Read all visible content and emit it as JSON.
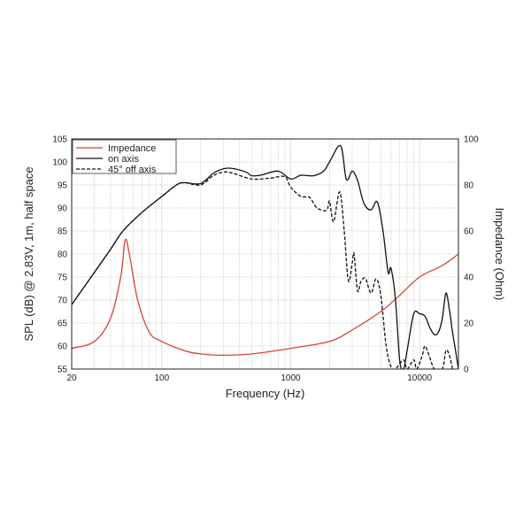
{
  "chart_data": {
    "type": "line",
    "xlabel": "Frequency (Hz)",
    "ylabel": "SPL (dB) @ 2.83V, 1m, half space",
    "y2label": "Impedance (Ohm)",
    "xscale": "log",
    "xlim": [
      20,
      20000
    ],
    "ylim": [
      55,
      105
    ],
    "y2lim": [
      0,
      100
    ],
    "x_ticks": [
      "20",
      "100",
      "1000",
      "10000"
    ],
    "x_tick_values": [
      20,
      100,
      1000,
      10000
    ],
    "y_ticks": [
      "55",
      "60",
      "65",
      "70",
      "75",
      "80",
      "85",
      "90",
      "95",
      "100",
      "105"
    ],
    "y2_ticks": [
      "0",
      "20",
      "40",
      "60",
      "80",
      "100"
    ],
    "grid": true,
    "legend_position": "top-left",
    "series": [
      {
        "name": "Impedance",
        "axis": "right",
        "color": "#d9403a",
        "style": "solid",
        "x": [
          20,
          30,
          40,
          48,
          52,
          56,
          65,
          80,
          100,
          150,
          200,
          300,
          500,
          1000,
          2000,
          3000,
          5000,
          7000,
          10000,
          15000,
          20000
        ],
        "y": [
          9,
          12,
          22,
          40,
          56,
          50,
          30,
          16,
          12,
          8,
          6.6,
          6,
          6.6,
          9,
          12,
          17,
          25,
          32,
          40,
          45,
          50
        ]
      },
      {
        "name": "on axis",
        "axis": "left",
        "color": "#111111",
        "style": "solid",
        "x": [
          20,
          30,
          40,
          50,
          70,
          100,
          130,
          150,
          200,
          250,
          300,
          350,
          450,
          500,
          600,
          800,
          1000,
          1200,
          1500,
          1800,
          2000,
          2440,
          2700,
          3000,
          3300,
          3700,
          4200,
          4700,
          5200,
          5700,
          6000,
          6500,
          7000,
          7500,
          8000,
          9000,
          10000,
          11000,
          12000,
          13000,
          14000,
          15000,
          16000,
          17000,
          18000,
          19000,
          20000
        ],
        "y": [
          69,
          76,
          81,
          85,
          89,
          92.5,
          95,
          95.5,
          95.3,
          97.5,
          98.5,
          98.6,
          97.8,
          97,
          97.2,
          98,
          96.3,
          97.1,
          97,
          98,
          100,
          103.5,
          96.2,
          98,
          96,
          91,
          89.6,
          91.3,
          85,
          76,
          76.9,
          70,
          57,
          55,
          59,
          67,
          67,
          66.5,
          64,
          62.5,
          63,
          66,
          71.5,
          68,
          63,
          59,
          55
        ]
      },
      {
        "name": "45° off axis",
        "axis": "left",
        "color": "#111111",
        "style": "dashed",
        "x": [
          20,
          30,
          40,
          50,
          70,
          100,
          130,
          150,
          200,
          250,
          300,
          350,
          500,
          700,
          900,
          1000,
          1200,
          1400,
          1600,
          1900,
          2000,
          2150,
          2400,
          2600,
          2800,
          3000,
          3100,
          3300,
          3500,
          3800,
          4200,
          4600,
          5000,
          5500,
          6000,
          6500,
          7500,
          8000,
          9000,
          9500,
          10500,
          11000,
          12000,
          13000,
          15000,
          16000,
          17000,
          18000
        ],
        "y": [
          69,
          76,
          81,
          85,
          89,
          92.5,
          95,
          95.5,
          95,
          97,
          97.8,
          97.6,
          96.3,
          96.5,
          96.8,
          94.5,
          92.5,
          92.3,
          90,
          89.5,
          91.5,
          87,
          93.5,
          85,
          74.2,
          78,
          80,
          72,
          74,
          74.7,
          71.5,
          74.6,
          71,
          60,
          55.5,
          55,
          57,
          55,
          57,
          55,
          58,
          60,
          57.5,
          55,
          55,
          59,
          58,
          55
        ]
      }
    ]
  }
}
